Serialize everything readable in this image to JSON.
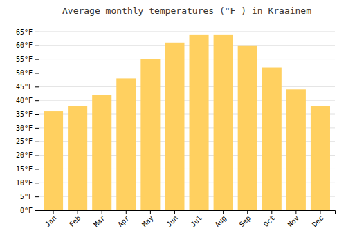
{
  "chart_data": {
    "type": "bar",
    "title": "Average monthly temperatures (°F ) in Kraainem",
    "categories": [
      "Jan",
      "Feb",
      "Mar",
      "Apr",
      "May",
      "Jun",
      "Jul",
      "Aug",
      "Sep",
      "Oct",
      "Nov",
      "Dec"
    ],
    "values": [
      36,
      38,
      42,
      48,
      55,
      61,
      64,
      64,
      60,
      52,
      44,
      38
    ],
    "color": "#FFD060",
    "ylim": [
      0,
      68
    ],
    "yticks": [
      {
        "value": 0,
        "label": "0°F"
      },
      {
        "value": 5,
        "label": "5°F"
      },
      {
        "value": 10,
        "label": "10°F"
      },
      {
        "value": 15,
        "label": "15°F"
      },
      {
        "value": 20,
        "label": "20°F"
      },
      {
        "value": 25,
        "label": "25°F"
      },
      {
        "value": 30,
        "label": "30°F"
      },
      {
        "value": 35,
        "label": "35°F"
      },
      {
        "value": 40,
        "label": "40°F"
      },
      {
        "value": 45,
        "label": "45°F"
      },
      {
        "value": 50,
        "label": "50°F"
      },
      {
        "value": 55,
        "label": "55°F"
      },
      {
        "value": 60,
        "label": "60°F"
      },
      {
        "value": 65,
        "label": "65°F"
      }
    ],
    "grid": true
  }
}
